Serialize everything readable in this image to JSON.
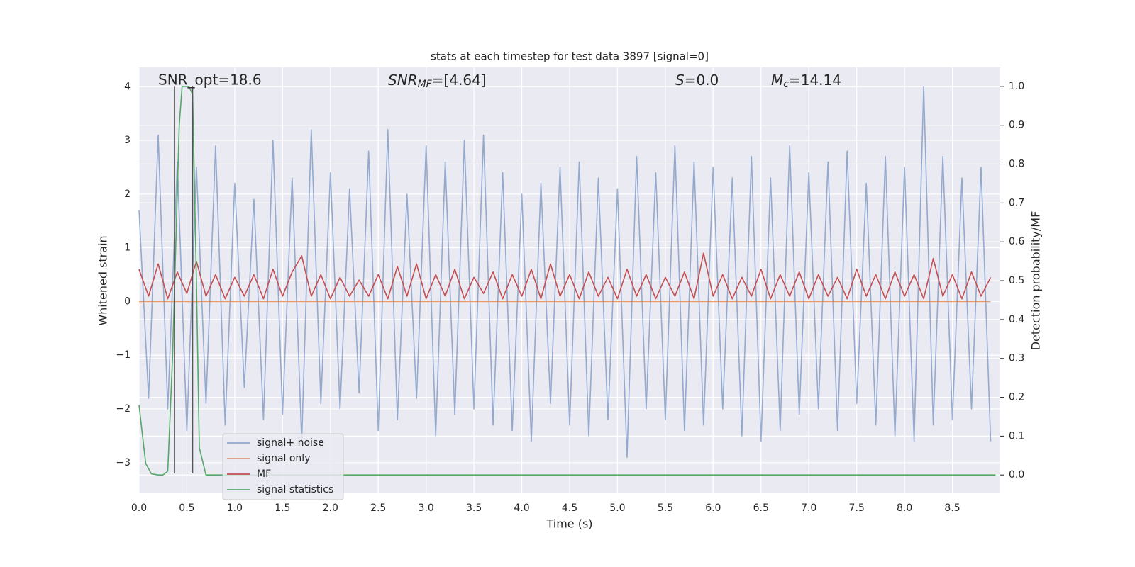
{
  "chart_data": {
    "type": "line",
    "title": "stats at each timestep for test data 3897 [signal=0]",
    "xlabel": "Time (s)",
    "ylabel": "Whitened strain",
    "y2label": "Detection probability/MF",
    "xlim": [
      0,
      9.0
    ],
    "ylim": [
      -3.57,
      4.36
    ],
    "y2lim": [
      -0.047,
      1.049
    ],
    "xticks": [
      {
        "value": 0,
        "label": "0.0"
      },
      0.5,
      {
        "value": 1,
        "label": "1.0"
      },
      1.5,
      {
        "value": 2,
        "label": "2.0"
      },
      2.5,
      {
        "value": 3,
        "label": "3.0"
      },
      3.5,
      {
        "value": 4,
        "label": "4.0"
      },
      4.5,
      {
        "value": 5,
        "label": "5.0"
      },
      5.5,
      {
        "value": 6,
        "label": "6.0"
      },
      6.5,
      {
        "value": 7,
        "label": "7.0"
      },
      7.5,
      {
        "value": 8,
        "label": "8.0"
      },
      8.5
    ],
    "yticks": [
      {
        "value": -3,
        "label": "−3"
      },
      {
        "value": -2,
        "label": "−2"
      },
      {
        "value": -1,
        "label": "−1"
      },
      0,
      1,
      2,
      3,
      4
    ],
    "y2ticks": [
      {
        "value": 0,
        "label": "0.0"
      },
      0.1,
      0.2,
      0.3,
      0.4,
      0.5,
      0.6,
      0.7,
      0.8,
      0.9,
      {
        "value": 1,
        "label": "1.0"
      }
    ],
    "grid": true,
    "legend": "lower left",
    "annotations": [
      "SNR_opt=18.6",
      {
        "base": "SNR",
        "sub": "MF",
        "text": "=[4.64]"
      },
      {
        "base": "S",
        "text": "=0.0"
      },
      {
        "base": "M",
        "sub": "c",
        "text": "=14.14"
      }
    ],
    "vlines": {
      "x": [
        0.37,
        0.56
      ],
      "ymin": -3.2,
      "ymax": 4.0,
      "color": "#555555"
    },
    "series": [
      {
        "name": "signal+ noise",
        "color": "#4c72b0",
        "alpha": 0.55,
        "x": [
          0,
          0.1,
          0.2,
          0.3,
          0.4,
          0.5,
          0.6,
          0.7,
          0.8,
          0.9,
          1,
          1.1,
          1.2,
          1.3,
          1.4,
          1.5,
          1.6,
          1.7,
          1.8,
          1.9,
          2,
          2.1,
          2.2,
          2.3,
          2.4,
          2.5,
          2.6,
          2.7,
          2.8,
          2.9,
          3,
          3.1,
          3.2,
          3.3,
          3.4,
          3.5,
          3.6,
          3.7,
          3.8,
          3.9,
          4,
          4.1,
          4.2,
          4.3,
          4.4,
          4.5,
          4.6,
          4.7,
          4.8,
          4.9,
          5,
          5.1,
          5.2,
          5.3,
          5.4,
          5.5,
          5.6,
          5.7,
          5.8,
          5.9,
          6,
          6.1,
          6.2,
          6.3,
          6.4,
          6.5,
          6.6,
          6.7,
          6.8,
          6.9,
          7,
          7.1,
          7.2,
          7.3,
          7.4,
          7.5,
          7.6,
          7.7,
          7.8,
          7.9,
          8,
          8.1,
          8.2,
          8.3,
          8.4,
          8.5,
          8.6,
          8.7,
          8.8,
          8.9
        ],
        "values": [
          1.7,
          -1.8,
          3.1,
          -2.0,
          2.6,
          -2.4,
          2.5,
          -1.9,
          2.9,
          -2.3,
          2.2,
          -1.6,
          1.9,
          -2.2,
          3.0,
          -2.1,
          2.3,
          -2.6,
          3.2,
          -1.9,
          2.4,
          -2.0,
          2.1,
          -1.7,
          2.8,
          -2.4,
          3.2,
          -2.2,
          2.0,
          -1.8,
          2.9,
          -2.5,
          2.6,
          -2.1,
          3.0,
          -2.0,
          3.1,
          -2.3,
          2.4,
          -2.4,
          2.0,
          -2.6,
          2.2,
          -1.9,
          2.5,
          -2.3,
          2.6,
          -2.5,
          2.3,
          -2.2,
          2.1,
          -2.9,
          2.7,
          -2.0,
          2.4,
          -2.2,
          2.9,
          -2.4,
          2.6,
          -2.3,
          2.5,
          -2.0,
          2.3,
          -2.5,
          2.7,
          -2.6,
          2.3,
          -2.4,
          2.9,
          -2.1,
          2.4,
          -2.0,
          2.6,
          -2.4,
          2.8,
          -1.9,
          2.2,
          -2.3,
          2.7,
          -2.5,
          2.5,
          -2.6,
          4.0,
          -2.3,
          2.7,
          -2.2,
          2.3,
          -2.0,
          2.5,
          -2.6
        ]
      },
      {
        "name": "signal only",
        "color": "#dd8452",
        "alpha": 0.8,
        "x": [
          0,
          8.9
        ],
        "values": [
          0,
          0
        ]
      },
      {
        "name": "MF",
        "color": "#c44e52",
        "alpha": 1,
        "x": [
          0,
          0.1,
          0.2,
          0.3,
          0.4,
          0.5,
          0.6,
          0.7,
          0.8,
          0.9,
          1,
          1.1,
          1.2,
          1.3,
          1.4,
          1.5,
          1.6,
          1.7,
          1.8,
          1.9,
          2,
          2.1,
          2.2,
          2.3,
          2.4,
          2.5,
          2.6,
          2.7,
          2.8,
          2.9,
          3,
          3.1,
          3.2,
          3.3,
          3.4,
          3.5,
          3.6,
          3.7,
          3.8,
          3.9,
          4,
          4.1,
          4.2,
          4.3,
          4.4,
          4.5,
          4.6,
          4.7,
          4.8,
          4.9,
          5,
          5.1,
          5.2,
          5.3,
          5.4,
          5.5,
          5.6,
          5.7,
          5.8,
          5.9,
          6,
          6.1,
          6.2,
          6.3,
          6.4,
          6.5,
          6.6,
          6.7,
          6.8,
          6.9,
          7,
          7.1,
          7.2,
          7.3,
          7.4,
          7.5,
          7.6,
          7.7,
          7.8,
          7.9,
          8,
          8.1,
          8.2,
          8.3,
          8.4,
          8.5,
          8.6,
          8.7,
          8.8,
          8.9
        ],
        "values": [
          0.6,
          0.1,
          0.7,
          0.05,
          0.55,
          0.15,
          0.75,
          0.1,
          0.5,
          0.05,
          0.45,
          0.1,
          0.5,
          0.05,
          0.6,
          0.1,
          0.55,
          0.85,
          0.1,
          0.5,
          0.05,
          0.45,
          0.1,
          0.4,
          0.1,
          0.5,
          0.05,
          0.65,
          0.1,
          0.7,
          0.05,
          0.5,
          0.1,
          0.6,
          0.05,
          0.45,
          0.15,
          0.55,
          0.05,
          0.5,
          0.1,
          0.6,
          0.05,
          0.7,
          0.1,
          0.5,
          0.05,
          0.55,
          0.1,
          0.45,
          0.05,
          0.6,
          0.1,
          0.5,
          0.05,
          0.45,
          0.1,
          0.55,
          0.05,
          0.9,
          0.1,
          0.5,
          0.05,
          0.45,
          0.1,
          0.6,
          0.05,
          0.5,
          0.1,
          0.55,
          0.05,
          0.5,
          0.1,
          0.45,
          0.05,
          0.6,
          0.1,
          0.5,
          0.05,
          0.55,
          0.1,
          0.5,
          0.05,
          0.8,
          0.1,
          0.5,
          0.05,
          0.55,
          0.1,
          0.45
        ]
      },
      {
        "name": "signal statistics",
        "color": "#55a868",
        "alpha": 1,
        "axis": "y2",
        "x": [
          0,
          0.07,
          0.13,
          0.2,
          0.25,
          0.3,
          0.35,
          0.42,
          0.45,
          0.52,
          0.56,
          0.6,
          0.63,
          0.7,
          8.95
        ],
        "values": [
          0.18,
          0.03,
          0.003,
          0,
          0,
          0.01,
          0.3,
          0.9,
          1.0,
          1.0,
          0.98,
          0.5,
          0.07,
          0,
          0
        ]
      }
    ]
  }
}
